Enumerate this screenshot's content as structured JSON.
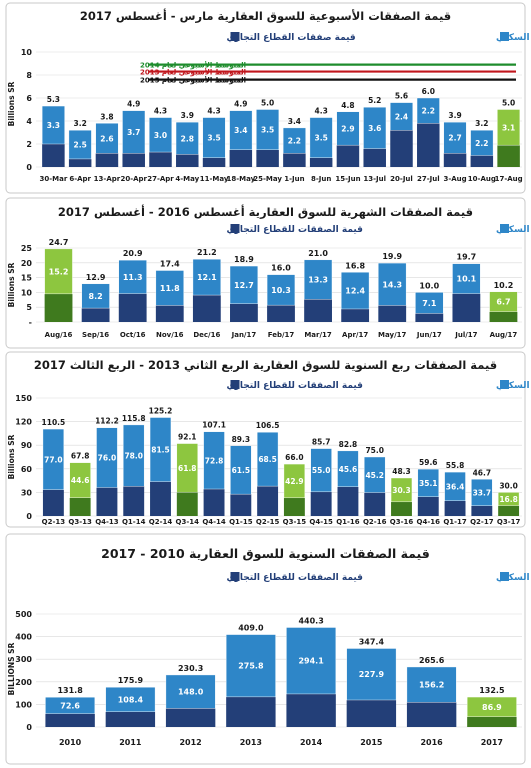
{
  "colors": {
    "residential": "#2e86c8",
    "commercial": "#233f78",
    "highlight_res": "#8dc63f",
    "highlight_com": "#3f7a1e",
    "grid": "#d9d9d9",
    "text": "#1a1a1a",
    "panel_border": "#c9c9c9",
    "avg2014": "#1e8c2c",
    "avg2013": "#c0161c",
    "avg2015": "#111111"
  },
  "legend": {
    "residential": "قيمة صفقات القطاع السكني",
    "commercial": "قيمة صفقات القطاع التجاري"
  },
  "chart_data": [
    {
      "id": "weekly",
      "type": "bar",
      "stacked": true,
      "title": "قيمة الصفقات الأسبوعية للسوق العقارية مارس - أغسطس 2017",
      "ylabel": "Billions SR",
      "ylim": [
        0,
        10
      ],
      "yticks": [
        "0",
        "2",
        "4",
        "6",
        "8",
        "10"
      ],
      "legend": {
        "residential": "قيمة صفقات القطاع السكني",
        "commercial": "قيمة صفقات القطاع التجاري"
      },
      "categories": [
        "30-Mar",
        "6-Apr",
        "13-Apr",
        "20-Apr",
        "27-Apr",
        "4-May",
        "11-May",
        "18-May",
        "25-May",
        "1-Jun",
        "8-Jun",
        "15-Jun",
        "13-Jul",
        "20-Jul",
        "27-Jul",
        "3-Aug",
        "10-Aug",
        "17-Aug"
      ],
      "residential": [
        3.3,
        2.5,
        2.6,
        3.7,
        3.0,
        2.8,
        3.5,
        3.4,
        3.5,
        2.2,
        3.5,
        2.9,
        3.6,
        2.4,
        2.2,
        2.7,
        2.2,
        3.1
      ],
      "residential_labels": [
        "3.3",
        "2.5",
        "2.6",
        "3.7",
        "3.0",
        "2.8",
        "3.5",
        "3.4",
        "3.5",
        "2.2",
        "3.5",
        "2.9",
        "3.6",
        "2.4",
        "2.2",
        "2.7",
        "2.2",
        "3.1"
      ],
      "totals": [
        5.3,
        3.2,
        3.8,
        4.9,
        4.3,
        3.9,
        4.3,
        4.9,
        5.0,
        3.4,
        4.3,
        4.8,
        5.2,
        5.6,
        6.0,
        3.9,
        3.2,
        5.0
      ],
      "total_labels": [
        "5.3",
        "3.2",
        "3.8",
        "4.9",
        "4.3",
        "3.9",
        "4.3",
        "4.9",
        "5.0",
        "3.4",
        "4.3",
        "4.8",
        "5.2",
        "5.6",
        "6.0",
        "3.9",
        "3.2",
        "5.0"
      ],
      "commercial": [
        2.0,
        0.7,
        1.2,
        1.2,
        1.3,
        1.1,
        0.8,
        1.5,
        1.5,
        1.2,
        0.8,
        1.9,
        1.6,
        3.2,
        3.8,
        1.2,
        1.0,
        1.9
      ],
      "highlight_index": 17,
      "averages": [
        {
          "label": "المتوسط الأسبوعي لعام 2014",
          "value": 8.9
        },
        {
          "label": "المتوسط الأسبوعي لعام 2013",
          "value": 8.3
        },
        {
          "label": "المتوسط الأسبوعي لعام 2015",
          "value": 7.6
        }
      ]
    },
    {
      "id": "monthly",
      "type": "bar",
      "stacked": true,
      "title": "قيمة الصفقات الشهرية للسوق العقارية أغسطس 2016 - أغسطس 2017",
      "ylabel": "Billions SR",
      "ylim": [
        0,
        25
      ],
      "yticks": [
        "-",
        "5",
        "10",
        "15",
        "20",
        "25"
      ],
      "legend": {
        "residential": "قيمة الصفقات للقطاع السكني",
        "commercial": "قيمة الصفقات للقطاع التجاري"
      },
      "categories": [
        "Aug/16",
        "Sep/16",
        "Oct/16",
        "Nov/16",
        "Dec/16",
        "Jan/17",
        "Feb/17",
        "Mar/17",
        "Apr/17",
        "May/17",
        "Jun/17",
        "Jul/17",
        "Aug/17"
      ],
      "residential": [
        15.2,
        8.2,
        11.3,
        11.8,
        12.1,
        12.7,
        10.3,
        13.3,
        12.4,
        14.3,
        7.1,
        10.1,
        6.7
      ],
      "residential_labels": [
        "15.2",
        "8.2",
        "11.3",
        "11.8",
        "12.1",
        "12.7",
        "10.3",
        "13.3",
        "12.4",
        "14.3",
        "7.1",
        "10.1",
        "6.7"
      ],
      "totals": [
        24.7,
        12.9,
        20.9,
        17.4,
        21.2,
        18.9,
        16.0,
        21.0,
        16.8,
        19.9,
        10.0,
        19.7,
        10.2
      ],
      "total_labels": [
        "24.7",
        "12.9",
        "20.9",
        "17.4",
        "21.2",
        "18.9",
        "16.0",
        "21.0",
        "16.8",
        "19.9",
        "10.0",
        "19.7",
        "10.2"
      ],
      "commercial": [
        9.5,
        4.7,
        9.6,
        5.6,
        9.1,
        6.2,
        5.7,
        7.7,
        4.4,
        5.6,
        2.9,
        9.6,
        3.5
      ],
      "highlight_index": [
        0,
        12
      ]
    },
    {
      "id": "quarterly",
      "type": "bar",
      "stacked": true,
      "title": "قيمة الصفقات ربع السنوية للسوق العقارية الربع الثاني 2013 - الربع الثالث 2017",
      "ylabel": "Billions SR",
      "ylim": [
        0,
        150
      ],
      "yticks": [
        "0",
        "30",
        "60",
        "90",
        "120",
        "150"
      ],
      "legend": {
        "residential": "قيمة الصفقات للقطاع السكني",
        "commercial": "قيمة الصفقات للقطاع التجاري"
      },
      "categories": [
        "Q2-13",
        "Q3-13",
        "Q4-13",
        "Q1-14",
        "Q2-14",
        "Q3-14",
        "Q4-14",
        "Q1-15",
        "Q2-15",
        "Q3-15",
        "Q4-15",
        "Q1-16",
        "Q2-16",
        "Q3-16",
        "Q4-16",
        "Q1-17",
        "Q2-17",
        "Q3-17"
      ],
      "residential": [
        77.0,
        44.6,
        76.0,
        78.0,
        81.5,
        61.8,
        72.8,
        61.5,
        68.5,
        42.9,
        55.0,
        45.6,
        45.2,
        30.3,
        35.1,
        36.4,
        33.7,
        16.8
      ],
      "residential_labels": [
        "77.0",
        "44.6",
        "76.0",
        "78.0",
        "81.5",
        "61.8",
        "72.8",
        "61.5",
        "68.5",
        "42.9",
        "55.0",
        "45.6",
        "45.2",
        "30.3",
        "35.1",
        "36.4",
        "33.7",
        "16.8"
      ],
      "totals": [
        110.5,
        67.8,
        112.2,
        115.8,
        125.2,
        92.1,
        107.1,
        89.3,
        106.5,
        66.0,
        85.7,
        82.8,
        75.0,
        48.3,
        59.6,
        55.8,
        46.7,
        30.0
      ],
      "total_labels": [
        "110.5",
        "67.8",
        "112.2",
        "115.8",
        "125.2",
        "92.1",
        "107.1",
        "89.3",
        "106.5",
        "66.0",
        "85.7",
        "82.8",
        "75.0",
        "48.3",
        "59.6",
        "55.8",
        "46.7",
        "30.0"
      ],
      "commercial": [
        33.5,
        23.2,
        36.2,
        37.8,
        43.7,
        30.3,
        34.3,
        27.8,
        38.0,
        23.1,
        30.7,
        37.2,
        29.8,
        18.0,
        24.5,
        19.4,
        13.0,
        13.2
      ],
      "highlight_index": [
        1,
        5,
        9,
        13,
        17
      ]
    },
    {
      "id": "annual",
      "type": "bar",
      "stacked": true,
      "title": "قيمة الصفقات السنوية للسوق العقارية 2010 - 2017",
      "ylabel": "BILLIONS SR",
      "ylim": [
        0,
        500
      ],
      "yticks": [
        "0",
        "100",
        "200",
        "300",
        "400",
        "500"
      ],
      "legend": {
        "residential": "قيمة الصفقات للقطاع السكني",
        "commercial": "قيمة الصفقات للقطاع التجاري"
      },
      "categories": [
        "2010",
        "2011",
        "2012",
        "2013",
        "2014",
        "2015",
        "2016",
        "2017"
      ],
      "residential": [
        72.6,
        108.4,
        148.0,
        275.8,
        294.1,
        227.9,
        156.2,
        86.9
      ],
      "residential_labels": [
        "72.6",
        "108.4",
        "148.0",
        "275.8",
        "294.1",
        "227.9",
        "156.2",
        "86.9"
      ],
      "totals": [
        131.8,
        175.9,
        230.3,
        409.0,
        440.3,
        347.4,
        265.6,
        132.5
      ],
      "total_labels": [
        "131.8",
        "175.9",
        "230.3",
        "409.0",
        "440.3",
        "347.4",
        "265.6",
        "132.5"
      ],
      "commercial": [
        59.2,
        67.5,
        82.3,
        133.2,
        146.2,
        119.5,
        109.4,
        45.6
      ],
      "highlight_index": 7
    }
  ]
}
